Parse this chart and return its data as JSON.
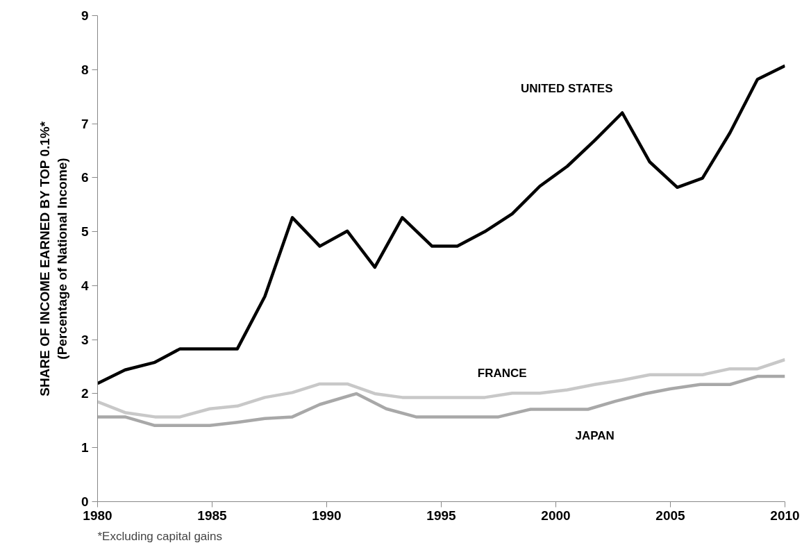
{
  "chart_data": {
    "type": "line",
    "ylabel": "SHARE OF INCOME EARNED BY TOP 0.1%*\n(Percentage of National Income)",
    "xlim": [
      1980,
      2010
    ],
    "xticks": [
      1980,
      1985,
      1990,
      1995,
      2000,
      2005,
      2010
    ],
    "ylim": [
      0,
      9
    ],
    "yticks": [
      0,
      1,
      2,
      3,
      4,
      5,
      6,
      7,
      8,
      9
    ],
    "grid": false,
    "marker": "none",
    "line_style": "solid",
    "series": [
      {
        "name": "UNITED STATES",
        "color": "#000000",
        "x": [
          1980,
          1981.2,
          1982.5,
          1983.6,
          1986.1,
          1987.3,
          1988.5,
          1989.7,
          1990.9,
          1992.1,
          1993.3,
          1994.6,
          1995.7,
          1996.9,
          1998.1,
          1999.3,
          2000.5,
          2001.7,
          2002.9,
          2004.1,
          2005.3,
          2006.4,
          2007.6,
          2008.8,
          2010
        ],
        "values": [
          2.19,
          2.44,
          2.58,
          2.83,
          2.83,
          3.8,
          5.26,
          4.73,
          5.01,
          4.34,
          5.26,
          4.73,
          4.73,
          5.0,
          5.33,
          5.84,
          6.21,
          6.69,
          7.2,
          6.29,
          5.82,
          5.99,
          6.83,
          7.82,
          8.07
        ]
      },
      {
        "name": "FRANCE",
        "color": "#c8c8c8",
        "x": [
          1980,
          1981.2,
          1982.5,
          1983.6,
          1984.9,
          1986.1,
          1987.3,
          1988.5,
          1989.7,
          1990.9,
          1992.1,
          1993.3,
          1994.6,
          1995.7,
          1996.9,
          1998.1,
          1999.3,
          2000.5,
          2001.7,
          2002.9,
          2004.1,
          2005.3,
          2006.4,
          2007.6,
          2008.8,
          2010
        ],
        "values": [
          1.85,
          1.65,
          1.57,
          1.57,
          1.72,
          1.77,
          1.93,
          2.02,
          2.18,
          2.18,
          2.0,
          1.93,
          1.93,
          1.93,
          1.93,
          2.01,
          2.01,
          2.07,
          2.17,
          2.25,
          2.35,
          2.35,
          2.35,
          2.46,
          2.46,
          2.63
        ]
      },
      {
        "name": "JAPAN",
        "color": "#a8a8a8",
        "x": [
          1980,
          1981.2,
          1982.5,
          1983.6,
          1984.9,
          1986.1,
          1987.3,
          1988.5,
          1989.7,
          1991.3,
          1992.6,
          1993.9,
          1997.5,
          1998.9,
          2001.4,
          2002.6,
          2003.9,
          2005.0,
          2006.3,
          2007.6,
          2008.8,
          2010
        ],
        "values": [
          1.57,
          1.57,
          1.41,
          1.41,
          1.41,
          1.47,
          1.54,
          1.57,
          1.8,
          2.0,
          1.72,
          1.57,
          1.57,
          1.71,
          1.71,
          1.86,
          2.0,
          2.09,
          2.17,
          2.17,
          2.32,
          2.32
        ]
      }
    ],
    "annotations": [
      "*Excluding capital gains"
    ]
  }
}
